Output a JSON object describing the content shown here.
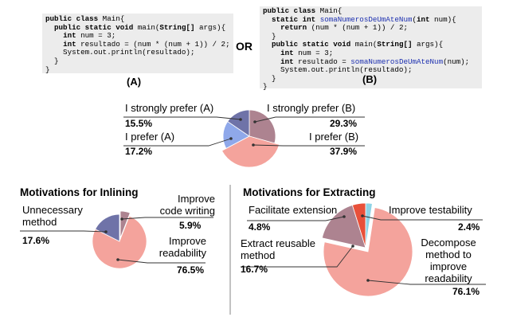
{
  "snippets": {
    "a": {
      "lines": [
        [
          {
            "t": "public class",
            "k": 1
          },
          {
            "t": " Main{"
          }
        ],
        [
          {
            "t": "  public static void",
            "k": 1
          },
          {
            "t": " main("
          },
          {
            "t": "String[]",
            "k": 1
          },
          {
            "t": " args){"
          }
        ],
        [
          {
            "t": "    "
          },
          {
            "t": "int",
            "k": 1
          },
          {
            "t": " num = 3;"
          }
        ],
        [
          {
            "t": "    "
          },
          {
            "t": "int",
            "k": 1
          },
          {
            "t": " resultado = (num * (num + 1)) / 2;"
          }
        ],
        [
          {
            "t": "    System.out.println(resultado);"
          }
        ],
        [
          {
            "t": "  }"
          }
        ],
        [
          {
            "t": "}"
          }
        ]
      ],
      "caption": "(A)"
    },
    "b": {
      "lines": [
        [
          {
            "t": "public class",
            "k": 1
          },
          {
            "t": " Main{"
          }
        ],
        [
          {
            "t": "  "
          },
          {
            "t": "static int",
            "k": 1
          },
          {
            "t": " "
          },
          {
            "t": "somaNumerosDeUmAteNum",
            "f": 1
          },
          {
            "t": "("
          },
          {
            "t": "int",
            "k": 1
          },
          {
            "t": " num){"
          }
        ],
        [
          {
            "t": "    "
          },
          {
            "t": "return",
            "k": 1
          },
          {
            "t": " (num * (num + 1)) / 2;"
          }
        ],
        [
          {
            "t": "  }"
          }
        ],
        [
          {
            "t": "  "
          },
          {
            "t": "public static void",
            "k": 1
          },
          {
            "t": " main("
          },
          {
            "t": "String[]",
            "k": 1
          },
          {
            "t": " args){"
          }
        ],
        [
          {
            "t": "    "
          },
          {
            "t": "int",
            "k": 1
          },
          {
            "t": " num = 3;"
          }
        ],
        [
          {
            "t": "    "
          },
          {
            "t": "int",
            "k": 1
          },
          {
            "t": " resultado = "
          },
          {
            "t": "somaNumerosDeUmAteNum",
            "f": 1
          },
          {
            "t": "(num);"
          }
        ],
        [
          {
            "t": "    System.out.println(resultado);"
          }
        ],
        [
          {
            "t": "  }"
          }
        ],
        [
          {
            "t": "}"
          }
        ]
      ],
      "caption": "(B)"
    },
    "or": "OR"
  },
  "sections": {
    "inlining": "Motivations for Inlining",
    "extracting": "Motivations for Extracting"
  },
  "chart_data": [
    {
      "type": "pie",
      "id": "preference",
      "title": "",
      "slices": [
        {
          "label": "I strongly prefer (A)",
          "value": 15.5,
          "pct": "15.5%",
          "color": "#6f73a8"
        },
        {
          "label": "I prefer (A)",
          "value": 17.2,
          "pct": "17.2%",
          "color": "#8fa8ea"
        },
        {
          "label": "I prefer (B)",
          "value": 37.9,
          "pct": "37.9%",
          "color": "#f4a39c"
        },
        {
          "label": "I strongly prefer (B)",
          "value": 29.3,
          "pct": "29.3%",
          "color": "#ad8390"
        }
      ]
    },
    {
      "type": "pie",
      "id": "inlining",
      "title": "Motivations for Inlining",
      "slices": [
        {
          "label": "Improve code writing",
          "value": 5.9,
          "pct": "5.9%",
          "color": "#ad8390"
        },
        {
          "label": "Improve readability",
          "value": 76.5,
          "pct": "76.5%",
          "color": "#f4a39c"
        },
        {
          "label": "Unnecessary method",
          "value": 17.6,
          "pct": "17.6%",
          "color": "#6f73a8"
        }
      ]
    },
    {
      "type": "pie",
      "id": "extracting",
      "title": "Motivations for Extracting",
      "slices": [
        {
          "label": "Improve testability",
          "value": 2.4,
          "pct": "2.4%",
          "color": "#8ed3e6"
        },
        {
          "label": "Decompose method to improve readability",
          "value": 76.1,
          "pct": "76.1%",
          "color": "#f4a39c"
        },
        {
          "label": "Extract reusable method",
          "value": 16.7,
          "pct": "16.7%",
          "color": "#ad8390"
        },
        {
          "label": "Facilitate extension",
          "value": 4.8,
          "pct": "4.8%",
          "color": "#e8503a"
        }
      ]
    }
  ],
  "labels": {
    "pref_sa": "I strongly prefer (A)",
    "pref_a": "I prefer (A)",
    "pref_sb": "I strongly prefer (B)",
    "pref_b": "I prefer (B)",
    "inl_code_1": "Improve",
    "inl_code_2": "code writing",
    "inl_unnec_1": "Unnecessary",
    "inl_unnec_2": "method",
    "inl_read_1": "Improve",
    "inl_read_2": "readability",
    "ext_fac": "Facilitate extension",
    "ext_test": "Improve testability",
    "ext_reuse_1": "Extract reusable",
    "ext_reuse_2": "method",
    "ext_dec_1": "Decompose",
    "ext_dec_2": "method to",
    "ext_dec_3": "improve",
    "ext_dec_4": "readability"
  }
}
